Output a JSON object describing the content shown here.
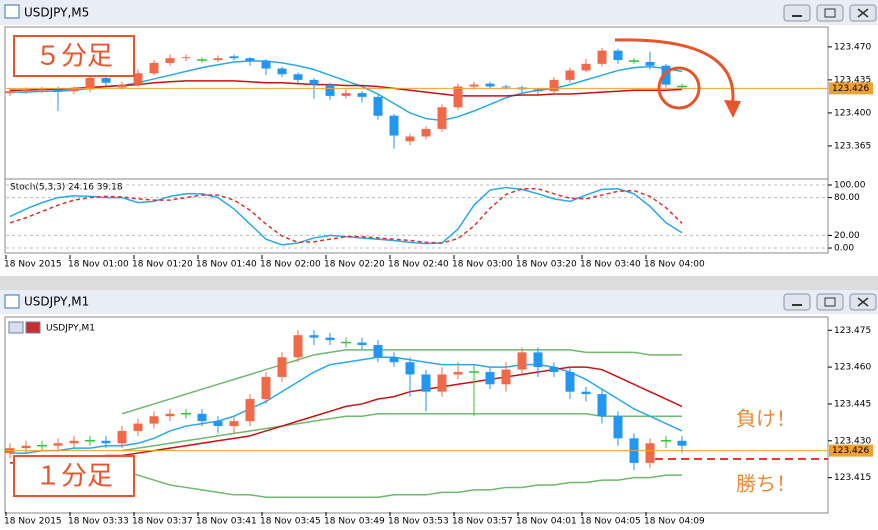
{
  "chart_data": [
    {
      "type": "candlestick",
      "title": "USDJPY,M5",
      "annotations": [
        "５分足"
      ],
      "categories": [
        "18 Nov 2015",
        null,
        null,
        null,
        "18 Nov 01:00",
        null,
        null,
        null,
        "18 Nov 01:20",
        null,
        null,
        null,
        "18 Nov 01:40",
        null,
        null,
        null,
        "18 Nov 02:00",
        null,
        null,
        null,
        "18 Nov 02:20",
        null,
        null,
        null,
        "18 Nov 02:40",
        null,
        null,
        null,
        "18 Nov 03:00",
        null,
        null,
        null,
        "18 Nov 03:20",
        null,
        null,
        null,
        "18 Nov 03:40",
        null,
        null,
        null,
        "18 Nov 04:00",
        null,
        null
      ],
      "open": [
        123.421,
        123.423,
        123.424,
        123.425,
        123.423,
        123.425,
        123.437,
        123.427,
        123.43,
        123.442,
        123.453,
        123.458,
        123.456,
        123.456,
        123.46,
        123.458,
        123.455,
        123.447,
        123.441,
        123.435,
        123.43,
        123.418,
        123.421,
        123.417,
        123.397,
        123.37,
        123.375,
        123.383,
        123.406,
        123.428,
        123.431,
        123.428,
        123.427,
        123.425,
        123.423,
        123.435,
        123.445,
        123.452,
        123.466,
        123.455,
        123.454,
        123.45,
        123.428
      ],
      "high": [
        123.426,
        123.427,
        123.428,
        123.428,
        123.428,
        123.44,
        123.44,
        123.433,
        123.446,
        123.456,
        123.462,
        123.462,
        123.459,
        123.461,
        123.462,
        123.459,
        123.457,
        123.449,
        123.443,
        123.437,
        123.432,
        123.425,
        123.423,
        123.419,
        123.399,
        123.378,
        123.386,
        123.409,
        123.431,
        123.433,
        123.433,
        123.43,
        123.429,
        123.426,
        123.438,
        123.448,
        123.457,
        123.469,
        123.468,
        123.458,
        123.465,
        123.452,
        123.431
      ],
      "low": [
        123.418,
        123.42,
        123.421,
        123.402,
        123.42,
        123.422,
        123.429,
        123.425,
        123.428,
        123.44,
        123.45,
        123.455,
        123.453,
        123.454,
        123.456,
        123.45,
        123.44,
        123.438,
        123.432,
        123.415,
        123.414,
        123.415,
        123.411,
        123.393,
        123.362,
        123.366,
        123.372,
        123.38,
        123.403,
        123.425,
        123.426,
        123.425,
        123.422,
        123.42,
        123.42,
        123.432,
        123.443,
        123.449,
        123.452,
        123.452,
        123.446,
        123.427,
        123.425
      ],
      "close": [
        123.423,
        123.424,
        123.425,
        123.423,
        123.425,
        123.437,
        123.432,
        123.43,
        123.442,
        123.453,
        123.458,
        123.459,
        123.456,
        123.458,
        123.458,
        123.455,
        123.447,
        123.441,
        123.435,
        123.43,
        123.418,
        123.421,
        123.417,
        123.397,
        123.376,
        123.375,
        123.383,
        123.406,
        123.428,
        123.43,
        123.428,
        123.427,
        123.425,
        123.423,
        123.435,
        123.445,
        123.452,
        123.466,
        123.456,
        123.455,
        123.45,
        123.43,
        123.428
      ],
      "up_color": "#f2694a",
      "down_color": "#2196f3",
      "doji_color": "#2fc43a",
      "series": [
        {
          "color": "#29a9e8",
          "values": [
            123.422,
            123.422,
            123.423,
            123.423,
            123.424,
            123.426,
            123.428,
            123.429,
            123.432,
            123.436,
            123.44,
            123.444,
            123.448,
            123.451,
            123.454,
            123.455,
            123.455,
            123.453,
            123.45,
            123.446,
            123.44,
            123.434,
            123.428,
            123.42,
            123.41,
            123.4,
            123.394,
            123.392,
            123.396,
            123.402,
            123.409,
            123.416,
            123.421,
            123.424,
            123.426,
            123.43,
            123.435,
            123.44,
            123.445,
            123.448,
            123.449,
            123.447,
            123.444
          ]
        },
        {
          "color": "#cc1010",
          "values": [
            123.424,
            123.424,
            123.425,
            123.425,
            123.426,
            123.427,
            123.428,
            123.429,
            123.43,
            123.432,
            123.433,
            123.434,
            123.434,
            123.434,
            123.434,
            123.433,
            123.432,
            123.432,
            123.431,
            123.43,
            123.43,
            123.429,
            123.429,
            123.428,
            123.426,
            123.424,
            123.422,
            123.42,
            123.418,
            123.418,
            123.418,
            123.418,
            123.419,
            123.419,
            123.42,
            123.42,
            123.421,
            123.422,
            123.423,
            123.424,
            123.424,
            123.424,
            123.425
          ]
        }
      ],
      "ylim": [
        123.331,
        123.49
      ],
      "yticks": [
        {
          "value": 123.47,
          "label": "123.470"
        },
        {
          "value": 123.435,
          "label": "123.435"
        },
        {
          "value": 123.4,
          "label": "123.400"
        },
        {
          "value": 123.365,
          "label": "123.365"
        }
      ],
      "last_price": {
        "value": 123.426,
        "label": "123.426"
      },
      "last_price_color": "#f0a030"
    },
    {
      "type": "line",
      "title": "Stoch(5,3,3) 24.16 39.18",
      "series": [
        {
          "color": "#29a9e8",
          "values": [
            50,
            62,
            72,
            80,
            83,
            82,
            80,
            80,
            72,
            74,
            82,
            86,
            86,
            80,
            62,
            38,
            14,
            5,
            8,
            16,
            20,
            18,
            16,
            14,
            12,
            9,
            7,
            8,
            30,
            68,
            92,
            96,
            93,
            86,
            78,
            74,
            84,
            93,
            94,
            86,
            66,
            40,
            24.16
          ]
        },
        {
          "color": "#e03030",
          "dashed": true,
          "values": [
            40,
            48,
            58,
            68,
            76,
            80,
            82,
            81,
            78,
            76,
            76,
            80,
            84,
            84,
            76,
            60,
            38,
            19,
            9,
            10,
            14,
            18,
            18,
            16,
            14,
            12,
            9,
            8,
            15,
            35,
            63,
            85,
            94,
            94,
            86,
            79,
            78,
            84,
            90,
            91,
            82,
            64,
            39.18
          ]
        }
      ],
      "ylim": [
        -6.3,
        107.9
      ],
      "yticks": [
        {
          "value": 100,
          "label": "100.00"
        },
        {
          "value": 80,
          "label": "80.00"
        },
        {
          "value": 20,
          "label": "20.00"
        },
        {
          "value": 0,
          "label": "0.00"
        }
      ],
      "grid": true
    },
    {
      "type": "candlestick",
      "title": "USDJPY,M1",
      "subtitle": "USDJPY,M1",
      "annotations": [
        "１分足",
        "負け！",
        "勝ち！"
      ],
      "categories": [
        "18 Nov 2015",
        null,
        null,
        null,
        "18 Nov 03:33",
        null,
        null,
        null,
        "18 Nov 03:37",
        null,
        null,
        null,
        "18 Nov 03:41",
        null,
        null,
        null,
        "18 Nov 03:45",
        null,
        null,
        null,
        "18 Nov 03:49",
        null,
        null,
        null,
        "18 Nov 03:53",
        null,
        null,
        null,
        "18 Nov 03:57",
        null,
        null,
        null,
        "18 Nov 04:01",
        null,
        null,
        null,
        "18 Nov 04:05",
        null,
        null,
        null,
        "18 Nov 04:09",
        null,
        null
      ],
      "open": [
        123.425,
        123.427,
        123.428,
        123.428,
        123.429,
        123.43,
        123.43,
        123.429,
        123.434,
        123.437,
        123.44,
        123.441,
        123.441,
        123.438,
        123.436,
        123.438,
        123.447,
        123.456,
        123.464,
        123.473,
        123.472,
        123.47,
        123.47,
        123.469,
        123.464,
        123.462,
        123.457,
        123.45,
        123.457,
        123.458,
        123.458,
        123.453,
        123.459,
        123.466,
        123.46,
        123.458,
        123.45,
        123.449,
        123.44,
        123.431,
        123.421,
        123.43,
        123.43
      ],
      "high": [
        123.429,
        123.43,
        123.43,
        123.431,
        123.432,
        123.432,
        123.432,
        123.436,
        123.439,
        123.442,
        123.443,
        123.443,
        123.443,
        123.44,
        123.44,
        123.449,
        123.458,
        123.466,
        123.475,
        123.475,
        123.474,
        123.472,
        123.472,
        123.471,
        123.466,
        123.464,
        123.459,
        123.46,
        123.462,
        123.461,
        123.46,
        123.462,
        123.468,
        123.468,
        123.462,
        123.46,
        123.452,
        123.451,
        123.442,
        123.433,
        123.431,
        123.432,
        123.432
      ],
      "low": [
        123.423,
        123.425,
        123.426,
        123.426,
        123.427,
        123.428,
        123.427,
        123.427,
        123.432,
        123.435,
        123.438,
        123.439,
        123.436,
        123.433,
        123.433,
        123.436,
        123.445,
        123.454,
        123.462,
        123.469,
        123.469,
        123.468,
        123.467,
        123.462,
        123.46,
        123.448,
        123.442,
        123.448,
        123.455,
        123.44,
        123.451,
        123.45,
        123.457,
        123.456,
        123.456,
        123.447,
        123.446,
        123.437,
        123.428,
        123.418,
        123.419,
        123.427,
        123.425
      ],
      "close": [
        123.427,
        123.428,
        123.428,
        123.429,
        123.43,
        123.43,
        123.429,
        123.434,
        123.437,
        123.44,
        123.441,
        123.441,
        123.438,
        123.436,
        123.438,
        123.447,
        123.456,
        123.464,
        123.473,
        123.472,
        123.471,
        123.47,
        123.469,
        123.464,
        123.462,
        123.457,
        123.45,
        123.457,
        123.458,
        123.458,
        123.453,
        123.459,
        123.466,
        123.46,
        123.458,
        123.45,
        123.449,
        123.44,
        123.431,
        123.421,
        123.429,
        123.43,
        123.428
      ],
      "up_color": "#f2694a",
      "down_color": "#2196f3",
      "doji_color": "#2fc43a",
      "series": [
        {
          "color": "#6fb86f",
          "values": [
            null,
            null,
            null,
            null,
            null,
            null,
            null,
            123.441,
            123.443,
            123.445,
            123.447,
            123.449,
            123.451,
            123.453,
            123.455,
            123.457,
            123.459,
            123.461,
            123.463,
            123.465,
            123.466,
            123.467,
            123.467,
            123.467,
            123.467,
            123.467,
            123.467,
            123.467,
            123.467,
            123.467,
            123.467,
            123.467,
            123.467,
            123.467,
            123.467,
            123.467,
            123.466,
            123.466,
            123.466,
            123.466,
            123.465,
            123.465,
            123.465
          ]
        },
        {
          "color": "#6fb86f",
          "values": [
            null,
            null,
            null,
            null,
            null,
            null,
            null,
            123.426,
            123.427,
            123.428,
            123.429,
            123.43,
            123.431,
            123.432,
            123.433,
            123.434,
            123.435,
            123.436,
            123.437,
            123.438,
            123.439,
            123.44,
            123.44,
            123.441,
            123.441,
            123.441,
            123.441,
            123.441,
            123.441,
            123.441,
            123.441,
            123.441,
            123.441,
            123.441,
            123.441,
            123.441,
            123.441,
            123.44,
            123.44,
            123.44,
            123.44,
            123.44,
            123.44
          ]
        },
        {
          "color": "#6fb86f",
          "values": [
            null,
            null,
            null,
            null,
            null,
            null,
            null,
            123.418,
            123.416,
            123.414,
            123.412,
            123.411,
            123.41,
            123.409,
            123.408,
            123.408,
            123.407,
            123.407,
            123.407,
            123.407,
            123.407,
            123.407,
            123.407,
            123.407,
            123.408,
            123.408,
            123.408,
            123.409,
            123.409,
            123.41,
            123.41,
            123.411,
            123.411,
            123.412,
            123.412,
            123.413,
            123.413,
            123.414,
            123.414,
            123.415,
            123.415,
            123.416,
            123.416
          ]
        },
        {
          "color": "#29a9e8",
          "values": [
            123.425,
            123.425,
            123.426,
            123.426,
            123.427,
            123.427,
            123.428,
            123.428,
            123.429,
            123.431,
            123.434,
            123.436,
            123.437,
            123.438,
            123.44,
            123.443,
            123.446,
            123.45,
            123.454,
            123.458,
            123.461,
            123.462,
            123.463,
            123.464,
            123.464,
            123.463,
            123.462,
            123.461,
            123.461,
            123.461,
            123.46,
            123.46,
            123.461,
            123.461,
            123.46,
            123.458,
            123.455,
            123.451,
            123.447,
            123.443,
            123.44,
            123.437,
            123.434
          ]
        },
        {
          "color": "#cc1010",
          "values": [
            123.421,
            123.421,
            123.422,
            123.422,
            123.423,
            123.423,
            123.424,
            123.424,
            123.425,
            123.426,
            123.427,
            123.428,
            123.429,
            123.43,
            123.431,
            123.432,
            123.434,
            123.436,
            123.438,
            123.44,
            123.442,
            123.444,
            123.445,
            123.447,
            123.448,
            123.45,
            123.451,
            123.452,
            123.453,
            123.454,
            123.455,
            123.456,
            123.457,
            123.458,
            123.459,
            123.46,
            123.46,
            123.459,
            123.456,
            123.453,
            123.45,
            123.447,
            123.444
          ]
        }
      ],
      "ylim": [
        123.401,
        123.48
      ],
      "yticks": [
        {
          "value": 123.475,
          "label": "123.475"
        },
        {
          "value": 123.46,
          "label": "123.460"
        },
        {
          "value": 123.445,
          "label": "123.445"
        },
        {
          "value": 123.43,
          "label": "123.430"
        },
        {
          "value": 123.415,
          "label": "123.415"
        }
      ],
      "last_price": {
        "value": 123.426,
        "label": "123.426"
      },
      "last_price_color": "#f0a030"
    }
  ]
}
